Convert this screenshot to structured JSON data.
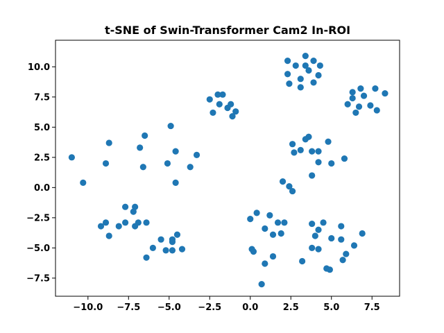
{
  "chart_data": {
    "type": "scatter",
    "title": "t-SNE of Swin-Transformer Cam2 In-ROI",
    "xlabel": "",
    "ylabel": "",
    "xlim": [
      -12.0,
      9.2
    ],
    "ylim": [
      -9.0,
      12.2
    ],
    "xticks": [
      -10.0,
      -7.5,
      -5.0,
      -2.5,
      0.0,
      2.5,
      5.0,
      7.5
    ],
    "xtick_labels": [
      "−10.0",
      "−7.5",
      "−5.0",
      "−2.5",
      "0.0",
      "2.5",
      "5.0",
      "7.5"
    ],
    "yticks": [
      -7.5,
      -5.0,
      -2.5,
      0.0,
      2.5,
      5.0,
      7.5,
      10.0
    ],
    "ytick_labels": [
      "−7.5",
      "−5.0",
      "−2.5",
      "0.0",
      "2.5",
      "5.0",
      "7.5",
      "10.0"
    ],
    "grid": false,
    "marker_color": "#1f77b4",
    "series": [
      {
        "points": [
          [
            3.4,
            10.9
          ],
          [
            2.3,
            10.5
          ],
          [
            3.9,
            10.5
          ],
          [
            2.8,
            10.1
          ],
          [
            3.4,
            10.1
          ],
          [
            4.3,
            10.1
          ],
          [
            3.6,
            9.7
          ],
          [
            2.3,
            9.4
          ],
          [
            4.2,
            9.3
          ],
          [
            3.1,
            9.0
          ],
          [
            2.4,
            8.6
          ],
          [
            3.9,
            8.7
          ],
          [
            3.1,
            8.3
          ],
          [
            7.7,
            8.2
          ],
          [
            6.8,
            8.2
          ],
          [
            6.3,
            7.9
          ],
          [
            8.3,
            7.8
          ],
          [
            7.0,
            7.6
          ],
          [
            6.3,
            7.4
          ],
          [
            6.0,
            6.9
          ],
          [
            7.4,
            6.8
          ],
          [
            6.7,
            6.7
          ],
          [
            7.8,
            6.4
          ],
          [
            6.5,
            6.2
          ],
          [
            -2.0,
            7.7
          ],
          [
            -1.7,
            7.7
          ],
          [
            -2.5,
            7.3
          ],
          [
            -1.9,
            6.9
          ],
          [
            -1.2,
            6.9
          ],
          [
            -1.4,
            6.6
          ],
          [
            -0.9,
            6.3
          ],
          [
            -2.3,
            6.2
          ],
          [
            -1.1,
            5.9
          ],
          [
            -4.9,
            5.1
          ],
          [
            -8.7,
            3.7
          ],
          [
            -6.5,
            4.3
          ],
          [
            -6.8,
            3.3
          ],
          [
            -4.6,
            3.0
          ],
          [
            -3.3,
            2.7
          ],
          [
            -11.0,
            2.5
          ],
          [
            -8.9,
            2.0
          ],
          [
            -5.1,
            2.0
          ],
          [
            -3.7,
            1.7
          ],
          [
            -6.6,
            1.7
          ],
          [
            -10.3,
            0.4
          ],
          [
            -4.6,
            0.4
          ],
          [
            3.6,
            4.2
          ],
          [
            3.4,
            4.0
          ],
          [
            4.8,
            3.8
          ],
          [
            2.6,
            3.6
          ],
          [
            3.1,
            3.1
          ],
          [
            3.8,
            3.0
          ],
          [
            4.2,
            3.0
          ],
          [
            2.7,
            2.9
          ],
          [
            5.8,
            2.4
          ],
          [
            4.2,
            2.1
          ],
          [
            5.0,
            2.0
          ],
          [
            3.8,
            1.0
          ],
          [
            2.0,
            0.5
          ],
          [
            2.4,
            0.1
          ],
          [
            2.6,
            -0.3
          ],
          [
            -7.7,
            -1.6
          ],
          [
            -7.1,
            -1.6
          ],
          [
            -7.2,
            -2.0
          ],
          [
            -8.9,
            -2.9
          ],
          [
            -7.7,
            -2.9
          ],
          [
            -6.9,
            -2.9
          ],
          [
            -6.4,
            -2.9
          ],
          [
            -9.2,
            -3.2
          ],
          [
            -8.1,
            -3.2
          ],
          [
            -7.1,
            -3.2
          ],
          [
            -8.7,
            -4.0
          ],
          [
            -4.5,
            -3.9
          ],
          [
            -5.5,
            -4.3
          ],
          [
            -4.8,
            -4.3
          ],
          [
            -4.8,
            -4.5
          ],
          [
            -6.0,
            -5.0
          ],
          [
            -5.2,
            -5.2
          ],
          [
            -4.8,
            -5.2
          ],
          [
            -4.2,
            -5.1
          ],
          [
            -6.4,
            -5.8
          ],
          [
            0.4,
            -2.1
          ],
          [
            1.2,
            -2.3
          ],
          [
            0.0,
            -2.6
          ],
          [
            1.7,
            -2.9
          ],
          [
            2.1,
            -2.9
          ],
          [
            0.9,
            -3.4
          ],
          [
            1.9,
            -3.8
          ],
          [
            1.4,
            -3.9
          ],
          [
            0.1,
            -5.1
          ],
          [
            0.2,
            -5.3
          ],
          [
            1.4,
            -5.7
          ],
          [
            0.9,
            -6.3
          ],
          [
            0.7,
            -8.0
          ],
          [
            4.5,
            -2.9
          ],
          [
            3.8,
            -3.0
          ],
          [
            5.6,
            -3.2
          ],
          [
            4.2,
            -3.5
          ],
          [
            6.9,
            -3.8
          ],
          [
            4.0,
            -4.0
          ],
          [
            5.0,
            -4.2
          ],
          [
            5.6,
            -4.3
          ],
          [
            3.8,
            -5.0
          ],
          [
            4.2,
            -5.1
          ],
          [
            6.4,
            -4.8
          ],
          [
            5.9,
            -5.5
          ],
          [
            3.2,
            -6.1
          ],
          [
            5.7,
            -6.0
          ],
          [
            4.7,
            -6.7
          ],
          [
            4.9,
            -6.8
          ]
        ]
      }
    ]
  }
}
